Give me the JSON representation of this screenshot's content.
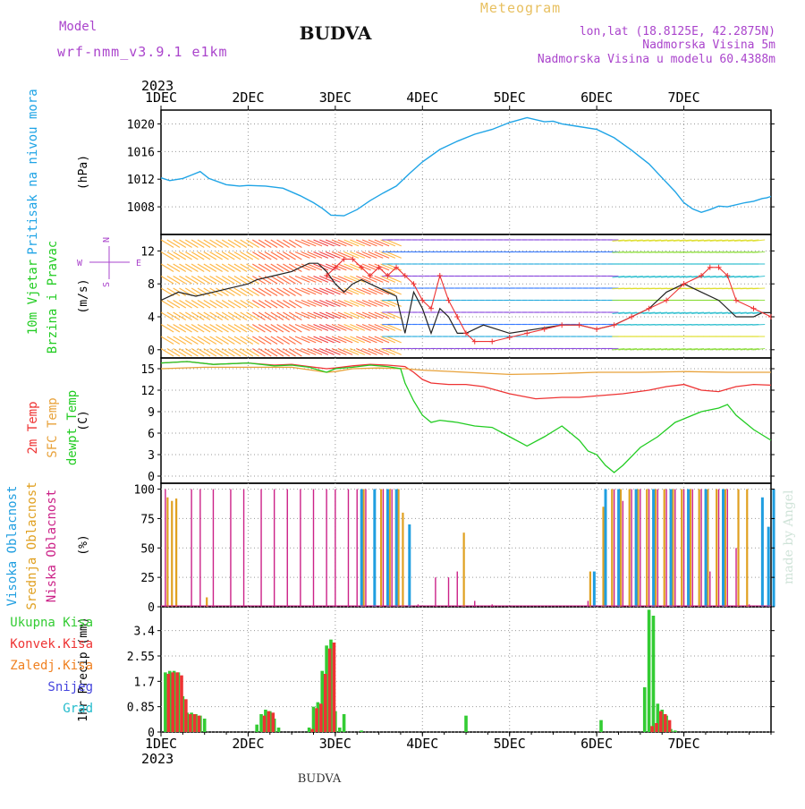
{
  "header": {
    "model_label": "Model",
    "model_name": "wrf-nmm_v3.9.1 e1km",
    "station": "BUDVA",
    "product": "Meteogram",
    "coords": "lon,lat (18.8125E, 42.2875N)",
    "altitude": "Nadmorska Visina 5m",
    "model_altitude": "Nadmorska Visina u modelu 60.4388m",
    "footer_station": "BUDVA",
    "credit": "made by Angel"
  },
  "colors": {
    "pressure": "#1fa4e6",
    "t2m": "#ee3333",
    "tsfc": "#e8a23a",
    "dewpt": "#22cc22",
    "cloud_high": "#1f9ee0",
    "cloud_mid": "#e0a020",
    "cloud_low": "#cc2288",
    "precip_total": "#33cc33",
    "precip_conv": "#ee3333",
    "precip_frz": "#f08020",
    "precip_snow": "#4444dd",
    "precip_hail": "#22bbcc",
    "wind_speed": "#222222",
    "wind_gust": "#ee3333",
    "compass": "#aa44cc",
    "header_purple": "#aa44cc",
    "header_gold": "#e8c060"
  },
  "chart_data": [
    {
      "panel": "pressure",
      "type": "line",
      "ylabel": "(hPa)",
      "side_labels": [
        "Pritisak na nivou mora"
      ],
      "x_ticks": [
        "1DEC",
        "2DEC",
        "3DEC",
        "4DEC",
        "5DEC",
        "6DEC",
        "7DEC"
      ],
      "x_top_year": "2023",
      "yticks": [
        "1008",
        "1012",
        "1016",
        "1020"
      ],
      "ylim": [
        1004,
        1022
      ],
      "x_days": [
        0,
        0.1,
        0.25,
        0.35,
        0.45,
        0.55,
        0.75,
        0.9,
        1.0,
        1.2,
        1.4,
        1.6,
        1.75,
        1.85,
        1.95,
        2.1,
        2.25,
        2.4,
        2.55,
        2.7,
        2.85,
        3.0,
        3.2,
        3.4,
        3.6,
        3.8,
        4.0,
        4.2,
        4.4,
        4.5,
        4.6,
        4.8,
        5.0,
        5.2,
        5.4,
        5.6,
        5.75,
        5.9,
        6.0,
        6.1,
        6.2,
        6.3,
        6.4,
        6.5,
        6.7,
        6.8,
        6.9,
        6.95,
        7.0
      ],
      "values": [
        1012.2,
        1011.8,
        1012.1,
        1012.6,
        1013.1,
        1012.1,
        1011.2,
        1011.0,
        1011.1,
        1011.0,
        1010.7,
        1009.6,
        1008.6,
        1007.8,
        1006.8,
        1006.7,
        1007.6,
        1008.9,
        1010.0,
        1011.0,
        1012.8,
        1014.5,
        1016.3,
        1017.5,
        1018.5,
        1019.2,
        1020.2,
        1020.9,
        1020.3,
        1020.4,
        1020.0,
        1019.6,
        1019.2,
        1018.0,
        1016.2,
        1014.2,
        1012.2,
        1010.2,
        1008.6,
        1007.7,
        1007.2,
        1007.6,
        1008.1,
        1008.0,
        1008.6,
        1008.8,
        1009.2,
        1009.3,
        1009.5
      ]
    },
    {
      "panel": "wind",
      "type": "line",
      "ylabel": "(m/s)",
      "side_labels": [
        "10m Vjetar",
        "Brzina i Pravac"
      ],
      "compass_labels": [
        "N",
        "S",
        "W",
        "E"
      ],
      "yticks": [
        "0",
        "4",
        "8",
        "12"
      ],
      "ylim": [
        -1,
        14
      ],
      "series": [
        {
          "name": "speed",
          "x_days": [
            0,
            0.2,
            0.4,
            0.6,
            0.8,
            1.0,
            1.1,
            1.3,
            1.5,
            1.7,
            1.8,
            1.9,
            2.0,
            2.1,
            2.2,
            2.3,
            2.4,
            2.5,
            2.6,
            2.7,
            2.8,
            2.9,
            3.0,
            3.1,
            3.2,
            3.3,
            3.4,
            3.5,
            3.7,
            4.0,
            4.3,
            4.6,
            4.8,
            5.0,
            5.2,
            5.4,
            5.6,
            5.8,
            6.0,
            6.2,
            6.4,
            6.6,
            6.8,
            6.9,
            7.0
          ],
          "values": [
            6,
            7,
            6.5,
            7,
            7.5,
            8,
            8.5,
            9,
            9.5,
            10.5,
            10.5,
            9.5,
            8,
            7,
            8,
            8.5,
            8,
            7.5,
            7,
            6.5,
            2,
            7,
            5,
            2,
            5,
            4,
            2,
            2,
            3,
            2,
            2.5,
            3,
            3,
            2.5,
            3,
            4,
            5,
            7,
            8,
            7,
            6,
            4,
            4,
            4.5,
            4.5
          ]
        },
        {
          "name": "gust",
          "x_days": [
            1.9,
            2.0,
            2.1,
            2.2,
            2.3,
            2.4,
            2.5,
            2.6,
            2.7,
            2.8,
            2.9,
            3.0,
            3.1,
            3.2,
            3.3,
            3.4,
            3.5,
            3.6,
            3.8,
            4.0,
            4.2,
            4.4,
            4.6,
            4.8,
            5.0,
            5.2,
            5.4,
            5.6,
            5.8,
            6.0,
            6.2,
            6.3,
            6.4,
            6.5,
            6.6,
            6.8,
            7.0
          ],
          "values": [
            9,
            10,
            11,
            11,
            10,
            9,
            10,
            9,
            10,
            9,
            8,
            6,
            5,
            9,
            6,
            4,
            2,
            1,
            1,
            1.5,
            2,
            2.5,
            3,
            3,
            2.5,
            3,
            4,
            5,
            6,
            8,
            9,
            10,
            10,
            9,
            6,
            5,
            4
          ]
        }
      ]
    },
    {
      "panel": "temperature",
      "type": "line",
      "ylabel": "(C)",
      "side_labels": [
        "2m Temp",
        "SFC Temp",
        "dewpt Temp"
      ],
      "yticks": [
        "0",
        "3",
        "6",
        "9",
        "12",
        "15"
      ],
      "ylim": [
        -1,
        16.5
      ],
      "series": [
        {
          "name": "2m Temp",
          "x_days": [
            0,
            0.3,
            0.6,
            1.0,
            1.3,
            1.5,
            1.7,
            1.9,
            2.0,
            2.2,
            2.4,
            2.6,
            2.8,
            2.9,
            3.0,
            3.1,
            3.3,
            3.5,
            3.7,
            4.0,
            4.3,
            4.6,
            4.8,
            5.0,
            5.3,
            5.6,
            5.8,
            6.0,
            6.2,
            6.4,
            6.6,
            6.8,
            7.0
          ],
          "values": [
            15.8,
            16.0,
            15.6,
            15.8,
            15.5,
            15.6,
            15.3,
            15.0,
            15.1,
            15.4,
            15.6,
            15.5,
            15.3,
            14.5,
            13.5,
            13.0,
            12.8,
            12.8,
            12.5,
            11.5,
            10.8,
            11.0,
            11.0,
            11.2,
            11.5,
            12.0,
            12.5,
            12.8,
            12.0,
            11.8,
            12.5,
            12.8,
            12.7
          ]
        },
        {
          "name": "SFC Temp",
          "x_days": [
            0,
            0.5,
            1.0,
            1.5,
            1.9,
            2.0,
            2.2,
            2.5,
            2.8,
            3.0,
            3.5,
            4.0,
            4.5,
            5.0,
            5.5,
            6.0,
            6.5,
            7.0
          ],
          "values": [
            15.0,
            15.2,
            15.2,
            15.2,
            14.5,
            14.6,
            15.0,
            15.1,
            15.0,
            14.8,
            14.5,
            14.2,
            14.3,
            14.5,
            14.5,
            14.6,
            14.5,
            14.5
          ]
        },
        {
          "name": "dewpt Temp",
          "x_days": [
            0,
            0.3,
            0.6,
            1.0,
            1.3,
            1.5,
            1.7,
            1.9,
            2.0,
            2.2,
            2.4,
            2.6,
            2.75,
            2.8,
            2.9,
            3.0,
            3.1,
            3.2,
            3.4,
            3.6,
            3.8,
            4.0,
            4.2,
            4.4,
            4.6,
            4.8,
            4.9,
            5.0,
            5.1,
            5.2,
            5.3,
            5.5,
            5.7,
            5.9,
            6.0,
            6.1,
            6.2,
            6.4,
            6.5,
            6.6,
            6.8,
            7.0
          ],
          "values": [
            15.8,
            16.0,
            15.6,
            15.8,
            15.4,
            15.5,
            15.2,
            14.5,
            15.0,
            15.2,
            15.5,
            15.3,
            15.0,
            13.0,
            10.5,
            8.5,
            7.5,
            7.8,
            7.5,
            7.0,
            6.8,
            5.5,
            4.2,
            5.5,
            7.0,
            5.0,
            3.5,
            3.0,
            1.5,
            0.5,
            1.5,
            4.0,
            5.5,
            7.5,
            8.0,
            8.5,
            9.0,
            9.5,
            10.0,
            8.5,
            6.5,
            5.0
          ]
        }
      ]
    },
    {
      "panel": "clouds",
      "type": "bar",
      "ylabel": "(%)",
      "side_labels": [
        "Visoka Oblacnost",
        "Srednja Oblacnost",
        "Niska Oblacnost"
      ],
      "yticks": [
        "0",
        "25",
        "50",
        "75",
        "100"
      ],
      "ylim": [
        0,
        105
      ],
      "series": [
        {
          "name": "Niska Oblacnost",
          "x_days": [
            0.05,
            0.35,
            0.45,
            0.6,
            0.8,
            0.95,
            1.15,
            1.3,
            1.45,
            1.6,
            1.75,
            1.9,
            2.0,
            2.15,
            2.25,
            2.35,
            2.45,
            2.55,
            2.65,
            2.95,
            3.15,
            3.3,
            3.4,
            3.6,
            3.8,
            4.9,
            5.1,
            5.2,
            5.3,
            5.4,
            5.5,
            5.6,
            5.7,
            5.8,
            5.9,
            6.0,
            6.1,
            6.2,
            6.3,
            6.4,
            6.5,
            6.6,
            6.75
          ],
          "values": [
            100,
            100,
            100,
            100,
            100,
            100,
            100,
            100,
            100,
            100,
            100,
            100,
            100,
            100,
            100,
            100,
            100,
            100,
            100,
            2,
            25,
            25,
            30,
            5,
            2,
            5,
            100,
            100,
            90,
            100,
            100,
            100,
            100,
            100,
            100,
            100,
            100,
            100,
            30,
            100,
            100,
            50,
            2
          ]
        },
        {
          "name": "Srednja Oblacnost",
          "x_days": [
            0.05,
            0.1,
            0.15,
            0.5,
            2.3,
            2.5,
            2.6,
            2.7,
            2.75,
            3.45,
            4.9,
            5.05,
            5.15,
            5.25,
            5.35,
            5.45,
            5.55,
            5.65,
            5.75,
            5.85,
            5.95,
            6.05,
            6.15,
            6.25,
            6.35,
            6.45,
            6.6,
            6.7
          ],
          "values": [
            93,
            90,
            92,
            8,
            100,
            100,
            100,
            100,
            80,
            63,
            30,
            85,
            100,
            100,
            100,
            100,
            100,
            100,
            100,
            100,
            100,
            100,
            100,
            100,
            100,
            100,
            100,
            100
          ]
        },
        {
          "name": "Visoka Oblacnost",
          "x_days": [
            2.25,
            2.4,
            2.55,
            2.65,
            2.8,
            4.92,
            5.05,
            5.2,
            5.4,
            5.6,
            5.8,
            6.0,
            6.2,
            6.4,
            6.85,
            6.92,
            6.98
          ],
          "values": [
            100,
            100,
            100,
            100,
            70,
            30,
            100,
            100,
            100,
            100,
            100,
            100,
            100,
            100,
            93,
            68,
            100
          ]
        }
      ]
    },
    {
      "panel": "precipitation",
      "type": "bar",
      "ylabel": "1hr Precip (mm)",
      "legend": [
        "Ukupna Kisa",
        "Konvek.Kisa",
        "Zaledj.Kisa",
        "Snijeg",
        "Grad"
      ],
      "x_ticks": [
        "1DEC",
        "2DEC",
        "3DEC",
        "4DEC",
        "5DEC",
        "6DEC",
        "7DEC"
      ],
      "x_bottom_year": "2023",
      "yticks": [
        "0",
        "0.85",
        "1.7",
        "2.55",
        "3.4"
      ],
      "ylim": [
        0,
        4.2
      ],
      "series": [
        {
          "name": "Ukupna Kisa",
          "x_days": [
            0.05,
            0.1,
            0.15,
            0.2,
            0.25,
            0.3,
            0.35,
            0.4,
            0.45,
            0.5,
            1.1,
            1.15,
            1.2,
            1.25,
            1.3,
            1.35,
            1.7,
            1.75,
            1.8,
            1.85,
            1.9,
            1.95,
            2.0,
            2.05,
            2.1,
            2.3,
            3.5,
            5.05,
            5.55,
            5.6,
            5.65,
            5.7,
            5.75,
            5.8,
            5.85,
            5.9
          ],
          "values": [
            2.0,
            2.05,
            2.05,
            2.0,
            1.2,
            0.65,
            0.65,
            0.6,
            0.55,
            0.45,
            0.25,
            0.6,
            0.75,
            0.7,
            0.45,
            0.15,
            0.15,
            0.85,
            1.0,
            2.05,
            2.9,
            3.1,
            0.7,
            0.15,
            0.6,
            0.05,
            0.55,
            0.4,
            1.5,
            4.1,
            3.9,
            0.95,
            0.75,
            0.55,
            0.1,
            0.05
          ]
        },
        {
          "name": "Konvek.Kisa",
          "x_days": [
            0.05,
            0.1,
            0.15,
            0.2,
            0.25,
            0.3,
            0.35,
            0.4,
            1.15,
            1.2,
            1.25,
            1.7,
            1.75,
            1.8,
            1.85,
            1.9,
            1.95,
            5.6,
            5.65,
            5.7,
            5.75,
            5.8
          ],
          "values": [
            1.95,
            2.0,
            2.0,
            1.9,
            1.1,
            0.6,
            0.6,
            0.55,
            0.55,
            0.7,
            0.65,
            0.1,
            0.8,
            0.95,
            1.95,
            2.8,
            3.0,
            0.2,
            0.3,
            0.7,
            0.6,
            0.4
          ]
        }
      ]
    }
  ]
}
